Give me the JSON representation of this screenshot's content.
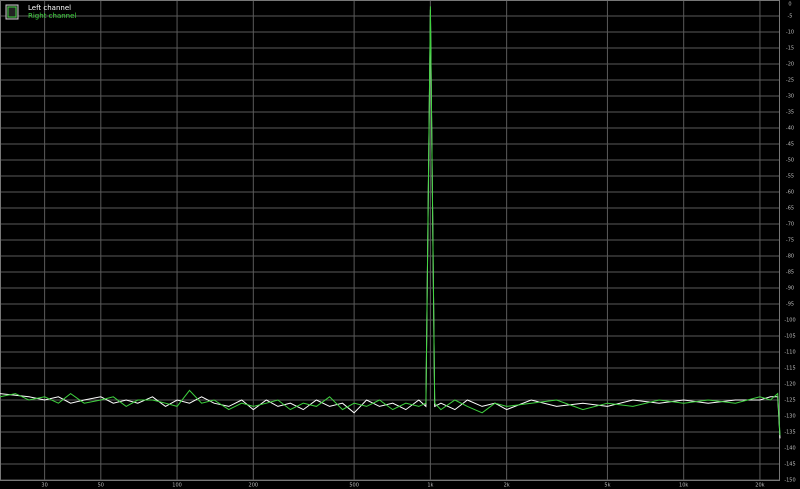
{
  "chart_data": {
    "type": "line",
    "x": [
      20,
      23,
      26,
      30,
      34,
      38,
      43,
      50,
      56,
      63,
      70,
      80,
      90,
      100,
      112,
      125,
      140,
      160,
      180,
      200,
      225,
      250,
      280,
      315,
      355,
      400,
      450,
      500,
      560,
      630,
      710,
      800,
      900,
      960,
      1000,
      1040,
      1100,
      1250,
      1400,
      1600,
      1800,
      2000,
      2500,
      3150,
      4000,
      5000,
      6300,
      8000,
      10000,
      12500,
      16000,
      20000,
      22000,
      23500,
      24000
    ],
    "series": [
      {
        "name": "Left channel",
        "color": "#ffffff",
        "values": [
          -123,
          -123.5,
          -124,
          -125,
          -124,
          -126,
          -125,
          -124,
          -126,
          -125,
          -126,
          -124,
          -127,
          -125,
          -126,
          -124,
          -126,
          -127,
          -125,
          -128,
          -125,
          -127,
          -126,
          -128,
          -125,
          -127,
          -126,
          -129,
          -125,
          -127,
          -126,
          -128,
          -125,
          -127,
          -3,
          -127,
          -126,
          -128,
          -125,
          -127,
          -126,
          -128,
          -125,
          -127,
          -126,
          -127,
          -125,
          -126,
          -125,
          -126,
          -125,
          -125,
          -124,
          -124,
          -137
        ]
      },
      {
        "name": "Right channel",
        "color": "#3fd23f",
        "values": [
          -124,
          -123,
          -125,
          -124,
          -126,
          -123,
          -126,
          -125,
          -124,
          -127,
          -125,
          -125,
          -126,
          -127,
          -122,
          -126,
          -125,
          -128,
          -126,
          -127,
          -126,
          -125,
          -128,
          -126,
          -127,
          -124,
          -128,
          -126,
          -127,
          -125,
          -128,
          -126,
          -127,
          -126,
          -2,
          -126,
          -128,
          -125,
          -127,
          -129,
          -126,
          -127,
          -126,
          -125,
          -128,
          -126,
          -127,
          -125,
          -126,
          -125,
          -126,
          -124,
          -125,
          -123,
          -136
        ]
      }
    ],
    "xlim": [
      20,
      24000
    ],
    "log_x": true,
    "xticks": [
      30,
      50,
      100,
      200,
      500,
      {
        "value": 1000,
        "label": "1k"
      },
      {
        "value": 2000,
        "label": "2k"
      },
      {
        "value": 5000,
        "label": "5k"
      },
      {
        "value": 10000,
        "label": "10k"
      },
      {
        "value": 20000,
        "label": "20k"
      }
    ],
    "ylim": [
      -150,
      0
    ],
    "yticks": [
      0,
      -5,
      -10,
      -15,
      -20,
      -25,
      -30,
      -35,
      -40,
      -45,
      -50,
      -55,
      -60,
      -65,
      -70,
      -75,
      -80,
      -85,
      -90,
      -95,
      -100,
      -105,
      -110,
      -115,
      -120,
      -125,
      -130,
      -135,
      -140,
      -145,
      -150
    ],
    "grid": true
  }
}
